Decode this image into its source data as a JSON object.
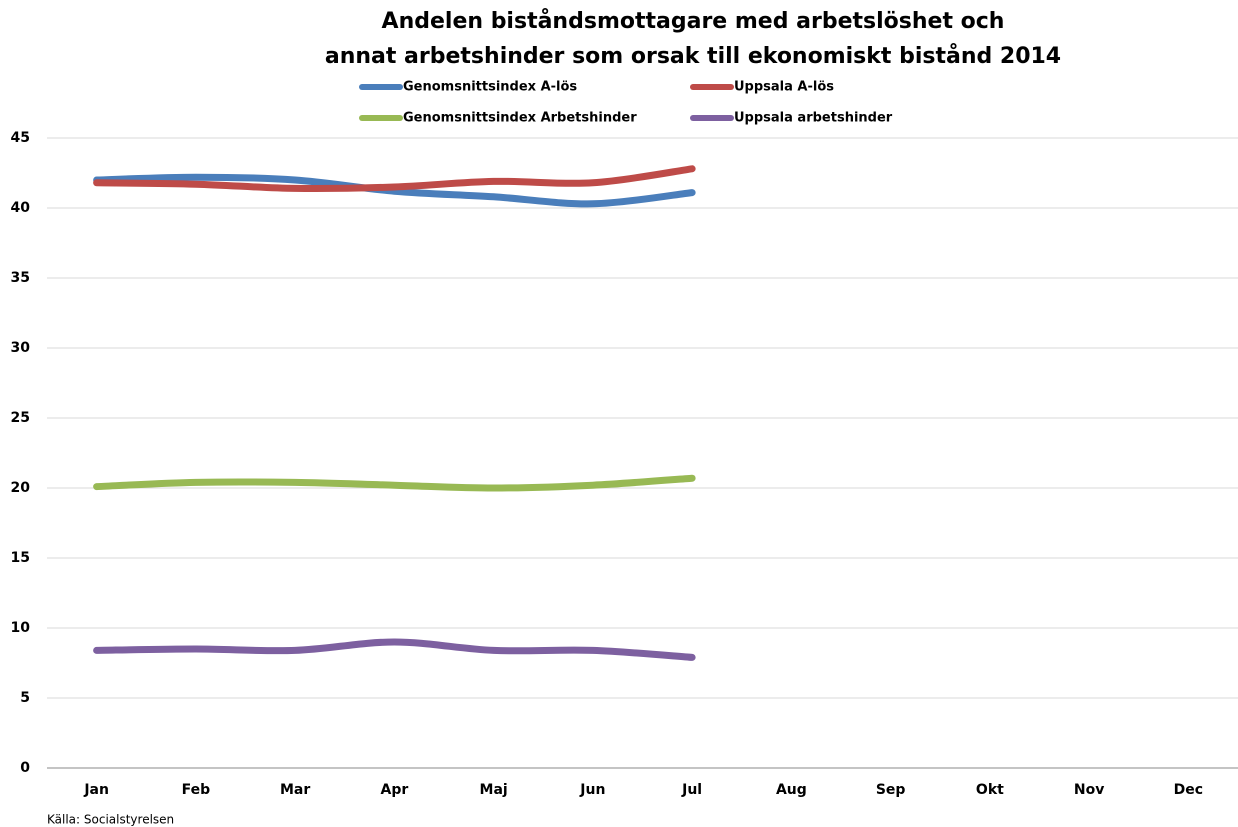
{
  "chart_data": {
    "type": "line",
    "title": [
      "Andelen biståndsmottagare med arbetslöshet och",
      "annat arbetshinder som orsak till ekonomiskt bistånd 2014"
    ],
    "source": "Källa: Socialstyrelsen",
    "categories": [
      "Jan",
      "Feb",
      "Mar",
      "Apr",
      "Maj",
      "Jun",
      "Jul",
      "Aug",
      "Sep",
      "Okt",
      "Nov",
      "Dec"
    ],
    "series": [
      {
        "name": "Genomsnittsindex A-lös",
        "color": "#4a7ebb",
        "values": [
          42.0,
          42.2,
          42.0,
          41.2,
          40.8,
          40.3,
          41.1,
          null,
          null,
          null,
          null,
          null
        ]
      },
      {
        "name": "Uppsala A-lös",
        "color": "#be4b48",
        "values": [
          41.8,
          41.7,
          41.4,
          41.5,
          41.9,
          41.8,
          42.8,
          null,
          null,
          null,
          null,
          null
        ]
      },
      {
        "name": "Genomsnittsindex Arbetshinder",
        "color": "#98b954",
        "values": [
          20.1,
          20.4,
          20.4,
          20.2,
          20.0,
          20.2,
          20.7,
          null,
          null,
          null,
          null,
          null
        ]
      },
      {
        "name": "Uppsala arbetshinder",
        "color": "#7d60a0",
        "values": [
          8.4,
          8.5,
          8.4,
          9.0,
          8.4,
          8.4,
          7.9,
          null,
          null,
          null,
          null,
          null
        ]
      }
    ],
    "ylim": [
      0,
      45
    ],
    "yticks": [
      0,
      5,
      10,
      15,
      20,
      25,
      30,
      35,
      40,
      45
    ],
    "grid": true
  }
}
